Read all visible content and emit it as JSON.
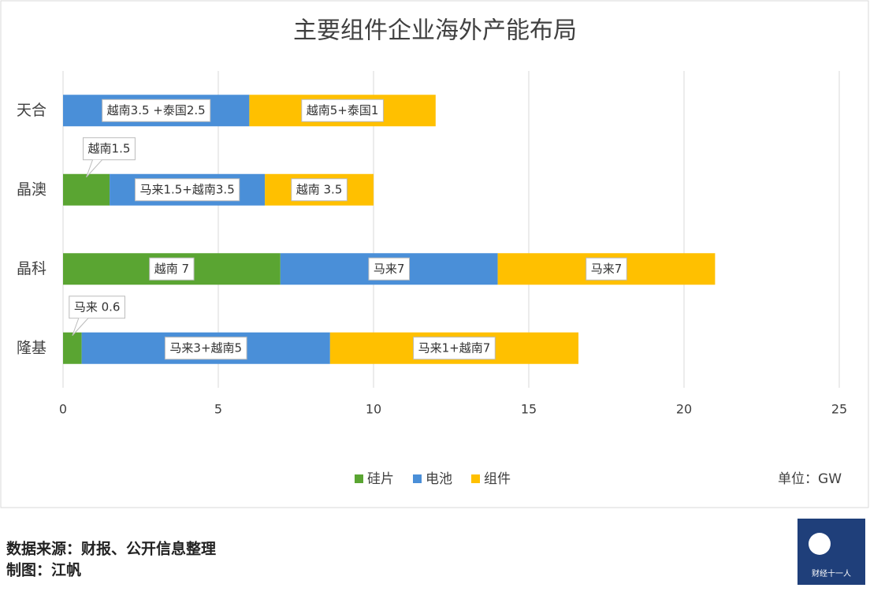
{
  "chart_data": {
    "type": "stacked-barh",
    "title": "主要组件企业海外产能布局",
    "categories": [
      "天合",
      "晶澳",
      "晶科",
      "隆基"
    ],
    "series": [
      {
        "name": "硅片",
        "color": "#5aa532",
        "values": [
          0,
          1.5,
          7,
          0.6
        ],
        "value_labels": [
          null,
          "越南1.5",
          "越南 7",
          "马来 0.6"
        ]
      },
      {
        "name": "电池",
        "color": "#4a8fd8",
        "values": [
          6,
          5,
          7,
          8
        ],
        "value_labels": [
          "越南3.5 +泰国2.5",
          "马来1.5+越南3.5",
          "马来7",
          "马来3+越南5"
        ]
      },
      {
        "name": "组件",
        "color": "#ffc000",
        "values": [
          6,
          3.5,
          7,
          8
        ],
        "value_labels": [
          "越南5+泰国1",
          "越南 3.5",
          "马来7",
          "马来1+越南7"
        ]
      }
    ],
    "xlim": [
      0,
      25
    ],
    "xticks": [
      0,
      5,
      10,
      15,
      20,
      25
    ],
    "grid": true,
    "unit": "单位：GW",
    "source": "数据来源：财报、公开信息整理",
    "author": "制图：江帆",
    "logo": "财经十一人"
  }
}
